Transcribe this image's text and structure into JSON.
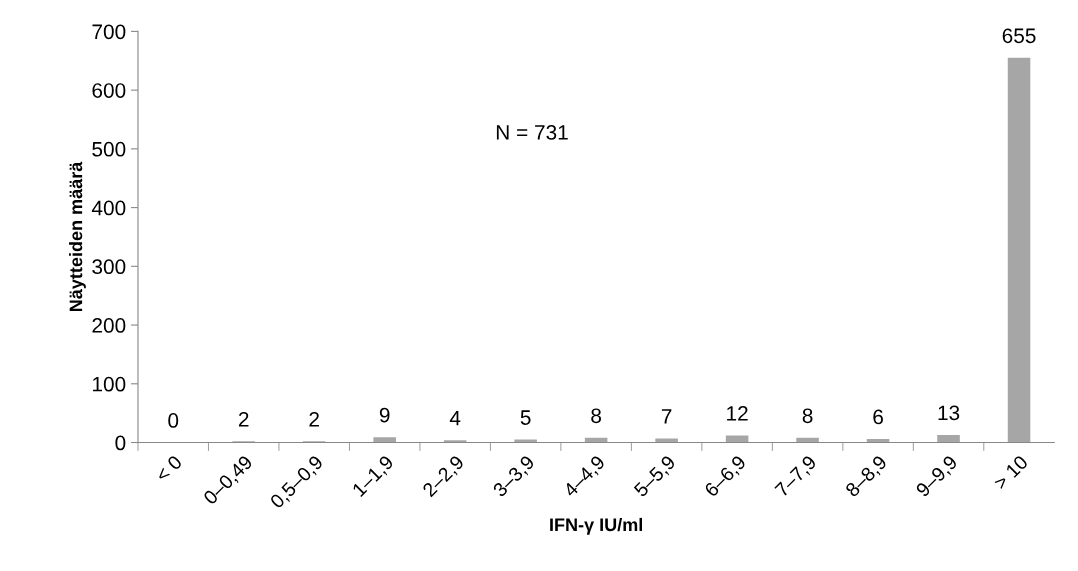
{
  "chart_data": {
    "type": "bar",
    "xlabel": "IFN-γ IU/ml",
    "ylabel": "Näytteiden määrä",
    "categories": [
      "< 0",
      "0–0,49",
      "0,5–0,9",
      "1–1,9",
      "2–2,9",
      "3–3,9",
      "4–4,9",
      "5–5,9",
      "6–6,9",
      "7–7,9",
      "8–8,9",
      "9–9,9",
      "> 10"
    ],
    "values": [
      0,
      2,
      2,
      9,
      4,
      5,
      8,
      7,
      12,
      8,
      6,
      13,
      655
    ],
    "color": "#a6a6a6",
    "ylim": [
      0,
      700
    ],
    "yticks": [
      0,
      100,
      200,
      300,
      400,
      500,
      600,
      700
    ],
    "data_labels": true,
    "grid": false,
    "legend": false,
    "annotations": [
      "N = 731"
    ]
  }
}
